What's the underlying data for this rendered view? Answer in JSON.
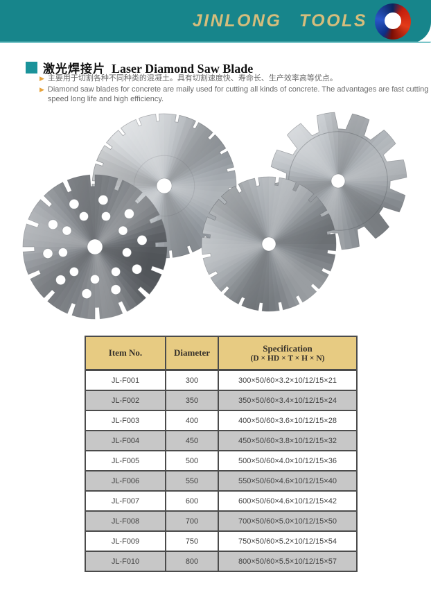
{
  "header": {
    "brand": "JINLONG TOOLS",
    "logo_icon": "red-blue-swirl-logo"
  },
  "section": {
    "title_zh": "激光焊接片",
    "title_en": "Laser Diamond Saw Blade",
    "bullets": [
      "主要用于切割各种不同种类的混凝土。具有切割速度快、寿命长、生产效率高等优点。",
      "Diamond saw blades for concrete are maily used for cutting all kinds of concrete. The advantages are fast cutting speed long life and high efficiency."
    ]
  },
  "icons": {
    "bullet": "▶"
  },
  "product_image": {
    "blades": [
      "segmented-laser-welded-blade-large",
      "hook-tooth-blade",
      "segmented-blade-small",
      "turbo-blade-with-cooling-holes"
    ]
  },
  "table": {
    "columns": [
      "Item No.",
      "Diameter",
      "Specification"
    ],
    "spec_subtitle": "(D × HD × T × H × N)",
    "rows": [
      {
        "item": "JL-F001",
        "diameter": "300",
        "spec": "300×50/60×3.2×10/12/15×21"
      },
      {
        "item": "JL-F002",
        "diameter": "350",
        "spec": "350×50/60×3.4×10/12/15×24"
      },
      {
        "item": "JL-F003",
        "diameter": "400",
        "spec": "400×50/60×3.6×10/12/15×28"
      },
      {
        "item": "JL-F004",
        "diameter": "450",
        "spec": "450×50/60×3.8×10/12/15×32"
      },
      {
        "item": "JL-F005",
        "diameter": "500",
        "spec": "500×50/60×4.0×10/12/15×36"
      },
      {
        "item": "JL-F006",
        "diameter": "550",
        "spec": "550×50/60×4.6×10/12/15×40"
      },
      {
        "item": "JL-F007",
        "diameter": "600",
        "spec": "600×50/60×4.6×10/12/15×42"
      },
      {
        "item": "JL-F008",
        "diameter": "700",
        "spec": "700×50/60×5.0×10/12/15×50"
      },
      {
        "item": "JL-F009",
        "diameter": "750",
        "spec": "750×50/60×5.2×10/12/15×54"
      },
      {
        "item": "JL-F010",
        "diameter": "800",
        "spec": "800×50/60×5.5×10/12/15×57"
      }
    ]
  },
  "colors": {
    "teal": "#17858b",
    "teal_light": "#79c4c8",
    "gold": "#d5bd7c",
    "title_square": "#1a939a",
    "bullet_orange": "#e7a33c",
    "text_gray": "#6a6a6a",
    "table_header_bg": "#e7cb82",
    "row_gray": "#c7c7c7",
    "border_dark": "#4b4b4b",
    "logo_red": "#c41e0c",
    "logo_blue": "#1b3a9e"
  }
}
